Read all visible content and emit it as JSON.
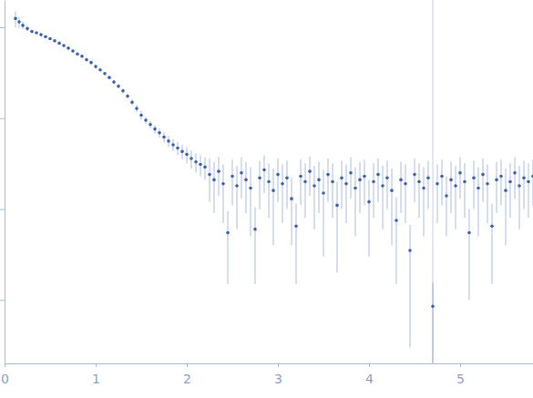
{
  "chart_data": {
    "type": "scatter",
    "log": "y",
    "tick_labels": "x",
    "xlim": [
      0,
      5.8
    ],
    "ylim": [
      0.0002,
      2
    ],
    "xticks": [
      0,
      1,
      2,
      3,
      4,
      5
    ],
    "yticks": [
      0.001,
      0.01,
      0.1,
      1
    ],
    "reference_x": 4.7,
    "series": [
      {
        "color": "#3a62b0",
        "marker": "circle",
        "x": [
          0.12,
          0.16,
          0.2,
          0.25,
          0.3,
          0.35,
          0.4,
          0.45,
          0.5,
          0.55,
          0.6,
          0.65,
          0.7,
          0.75,
          0.8,
          0.85,
          0.9,
          0.95,
          1.0,
          1.05,
          1.1,
          1.15,
          1.2,
          1.25,
          1.3,
          1.35,
          1.4,
          1.45,
          1.5,
          1.55,
          1.6,
          1.65,
          1.7,
          1.75,
          1.8,
          1.85,
          1.9,
          1.95,
          2.0,
          2.05,
          2.1,
          2.15,
          2.2,
          2.25,
          2.3,
          2.35,
          2.4,
          2.45,
          2.5,
          2.55,
          2.6,
          2.65,
          2.7,
          2.75,
          2.8,
          2.85,
          2.9,
          2.95,
          3.0,
          3.05,
          3.1,
          3.15,
          3.2,
          3.25,
          3.3,
          3.35,
          3.4,
          3.45,
          3.5,
          3.55,
          3.6,
          3.65,
          3.7,
          3.75,
          3.8,
          3.85,
          3.9,
          3.95,
          4.0,
          4.05,
          4.1,
          4.15,
          4.2,
          4.25,
          4.3,
          4.35,
          4.4,
          4.45,
          4.5,
          4.55,
          4.6,
          4.65,
          4.7,
          4.75,
          4.8,
          4.85,
          4.9,
          4.95,
          5.0,
          5.05,
          5.1,
          5.15,
          5.2,
          5.25,
          5.3,
          5.35,
          5.4,
          5.45,
          5.5,
          5.55,
          5.6,
          5.65,
          5.7,
          5.75,
          5.8
        ],
        "values": [
          1.25,
          1.15,
          1.05,
          0.97,
          0.9,
          0.87,
          0.83,
          0.79,
          0.75,
          0.71,
          0.67,
          0.63,
          0.59,
          0.55,
          0.51,
          0.48,
          0.44,
          0.41,
          0.37,
          0.34,
          0.31,
          0.28,
          0.25,
          0.225,
          0.2,
          0.175,
          0.15,
          0.128,
          0.108,
          0.095,
          0.085,
          0.076,
          0.069,
          0.062,
          0.056,
          0.051,
          0.047,
          0.043,
          0.04,
          0.036,
          0.033,
          0.031,
          0.029,
          0.024,
          0.021,
          0.026,
          0.019,
          0.0055,
          0.023,
          0.018,
          0.025,
          0.021,
          0.017,
          0.006,
          0.022,
          0.027,
          0.02,
          0.016,
          0.024,
          0.019,
          0.022,
          0.013,
          0.0065,
          0.023,
          0.02,
          0.026,
          0.018,
          0.021,
          0.015,
          0.024,
          0.02,
          0.011,
          0.022,
          0.019,
          0.025,
          0.017,
          0.021,
          0.023,
          0.012,
          0.02,
          0.024,
          0.018,
          0.022,
          0.016,
          0.0075,
          0.021,
          0.019,
          0.0035,
          0.024,
          0.02,
          0.017,
          0.022,
          0.00085,
          0.019,
          0.023,
          0.014,
          0.021,
          0.018,
          0.025,
          0.02,
          0.0055,
          0.022,
          0.017,
          0.024,
          0.019,
          0.0065,
          0.021,
          0.023,
          0.016,
          0.02,
          0.025,
          0.018,
          0.022,
          0.02,
          0.023
        ],
        "errors": [
          0.25,
          0.15,
          0.1,
          0.06,
          0.02,
          0.02,
          0.02,
          0.02,
          0.02,
          0.02,
          0.02,
          0.02,
          0.02,
          0.02,
          0.02,
          0.02,
          0.02,
          0.02,
          0.02,
          0.012,
          0.012,
          0.012,
          0.012,
          0.012,
          0.012,
          0.012,
          0.012,
          0.012,
          0.012,
          0.008,
          0.008,
          0.008,
          0.008,
          0.008,
          0.008,
          0.008,
          0.008,
          0.008,
          0.008,
          0.008,
          0.008,
          0.008,
          0.008,
          0.012,
          0.012,
          0.012,
          0.012,
          0.004,
          0.012,
          0.012,
          0.012,
          0.012,
          0.012,
          0.0045,
          0.012,
          0.012,
          0.012,
          0.012,
          0.012,
          0.012,
          0.012,
          0.009,
          0.005,
          0.012,
          0.012,
          0.012,
          0.012,
          0.012,
          0.012,
          0.012,
          0.012,
          0.009,
          0.012,
          0.012,
          0.012,
          0.012,
          0.012,
          0.012,
          0.009,
          0.012,
          0.012,
          0.012,
          0.012,
          0.012,
          0.006,
          0.012,
          0.012,
          0.0032,
          0.012,
          0.012,
          0.012,
          0.012,
          0.0007,
          0.012,
          0.012,
          0.009,
          0.012,
          0.012,
          0.012,
          0.012,
          0.0045,
          0.012,
          0.012,
          0.012,
          0.012,
          0.005,
          0.012,
          0.012,
          0.012,
          0.012,
          0.012,
          0.012,
          0.012,
          0.012,
          0.012
        ]
      }
    ]
  }
}
